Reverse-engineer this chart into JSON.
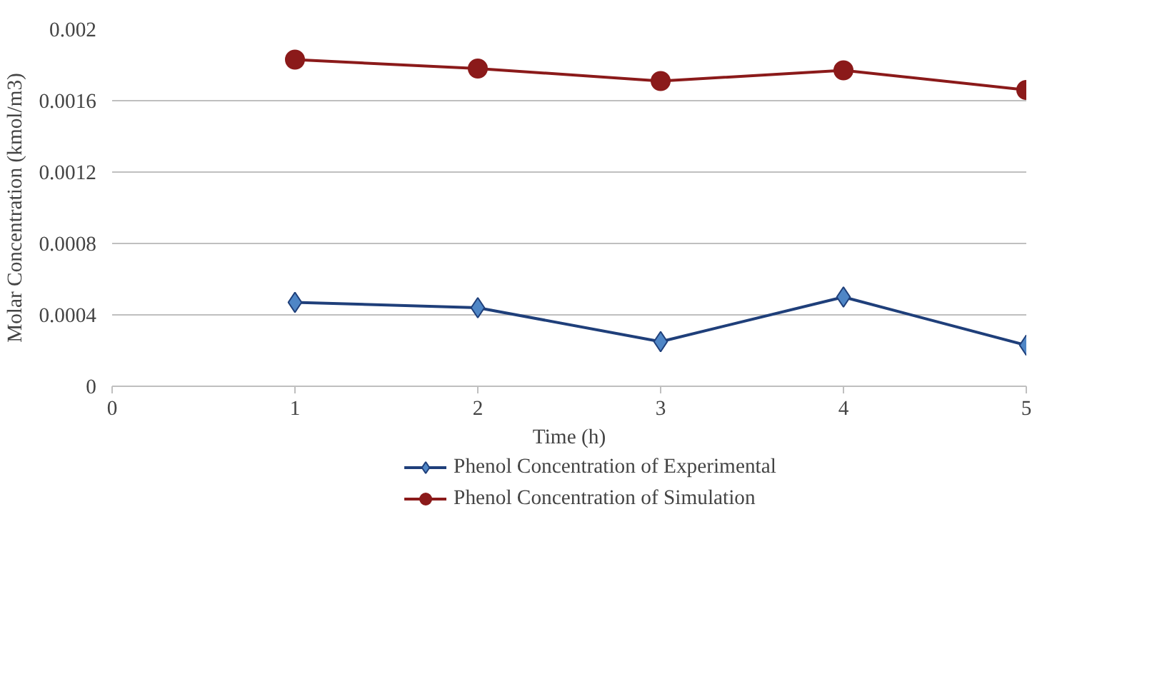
{
  "chart_data": {
    "type": "line",
    "xlabel": "Time (h)",
    "ylabel": "Molar Concentration (kmol/m3)",
    "x": [
      1,
      2,
      3,
      4,
      5
    ],
    "series": [
      {
        "name": "Phenol Concentration of Experimental",
        "color": "#1f3f7a",
        "marker": "diamond",
        "values": [
          0.00047,
          0.00044,
          0.00025,
          0.0005,
          0.00023
        ]
      },
      {
        "name": "Phenol Concentration of Simulation",
        "color": "#8b1a1a",
        "marker": "circle",
        "values": [
          0.00183,
          0.00178,
          0.00171,
          0.00177,
          0.00166
        ]
      }
    ],
    "xlim": [
      0,
      5
    ],
    "xticks": [
      0,
      1,
      2,
      3,
      4,
      5
    ],
    "ylim": [
      0,
      0.002
    ],
    "yticks": [
      {
        "value": 0,
        "label": "0"
      },
      {
        "value": 0.0004,
        "label": "0.0004"
      },
      {
        "value": 0.0008,
        "label": "0.0008"
      },
      {
        "value": 0.0012,
        "label": "0.0012"
      },
      {
        "value": 0.0016,
        "label": "0.0016"
      },
      {
        "value": 0.002,
        "label": "0.002"
      }
    ],
    "grid": "y",
    "legend": "bottom",
    "line_style": "solid"
  }
}
